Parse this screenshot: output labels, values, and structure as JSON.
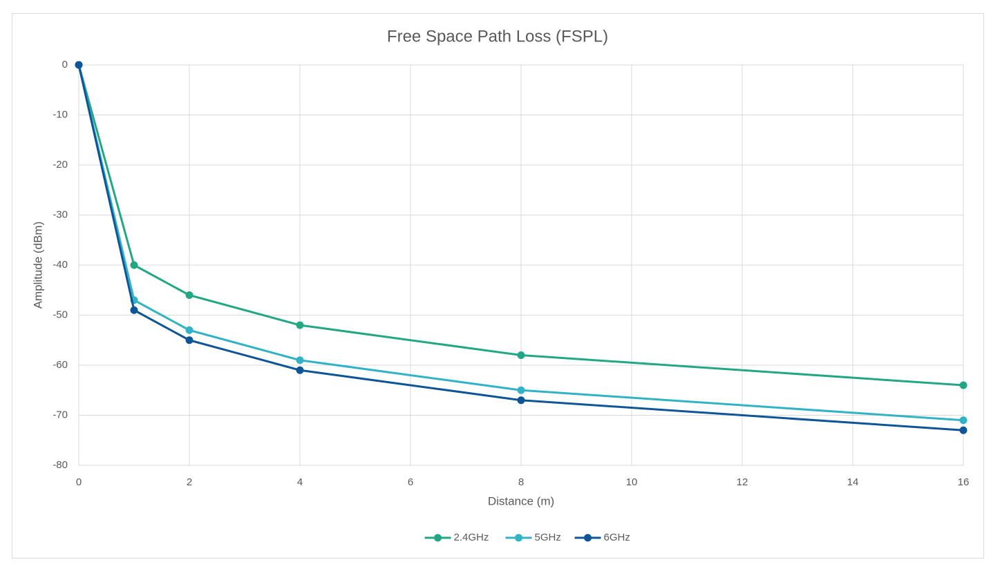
{
  "chart_data": {
    "type": "line",
    "title": "Free Space Path Loss (FSPL)",
    "x_label": "Distance (m)",
    "y_label": "Amplitude (dBm)",
    "x": [
      0,
      1,
      2,
      4,
      8,
      16
    ],
    "series": [
      {
        "name": "2.4GHz",
        "color": "#21a784",
        "values": [
          0,
          -40,
          -46,
          -52,
          -58,
          -64
        ]
      },
      {
        "name": "5GHz",
        "color": "#31b3c5",
        "values": [
          0,
          -47,
          -53,
          -59,
          -65,
          -71
        ]
      },
      {
        "name": "6GHz",
        "color": "#0e5598",
        "values": [
          0,
          -49,
          -55,
          -61,
          -67,
          -73
        ]
      }
    ],
    "xlim": [
      0,
      16
    ],
    "xticks": [
      0,
      2,
      4,
      6,
      8,
      10,
      12,
      14,
      16
    ],
    "ylim": [
      -80,
      0
    ],
    "yticks": [
      0,
      -10,
      -20,
      -30,
      -40,
      -50,
      -60,
      -70,
      -80
    ],
    "grid": true,
    "legend": "bottom"
  }
}
